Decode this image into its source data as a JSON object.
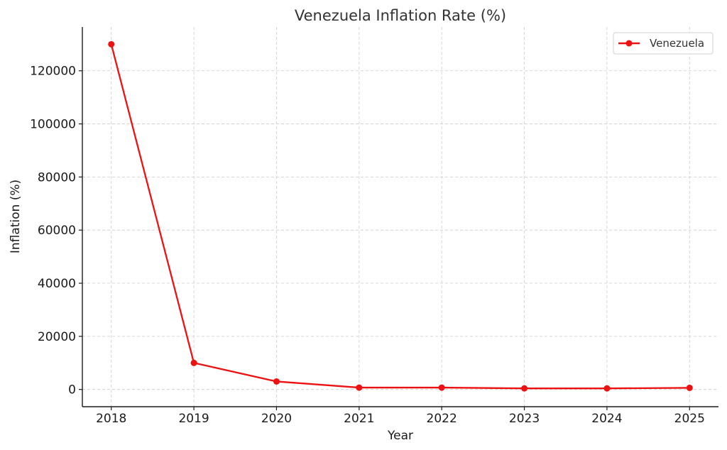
{
  "chart_data": {
    "type": "line",
    "title": "Venezuela Inflation Rate (%)",
    "xlabel": "Year",
    "ylabel": "Inflation (%)",
    "x": [
      2018,
      2019,
      2020,
      2021,
      2022,
      2023,
      2024,
      2025
    ],
    "x_tick_labels": [
      "2018",
      "2019",
      "2020",
      "2021",
      "2022",
      "2023",
      "2024",
      "2025"
    ],
    "xlim": [
      2017.65,
      2025.35
    ],
    "ylim": [
      -6500,
      136500
    ],
    "y_ticks": [
      0,
      20000,
      40000,
      60000,
      80000,
      100000,
      120000
    ],
    "y_tick_labels": [
      "0",
      "20000",
      "40000",
      "60000",
      "80000",
      "100000",
      "120000"
    ],
    "grid": true,
    "legend_position": "top-right",
    "series": [
      {
        "name": "Venezuela",
        "color": "#ee1111",
        "marker": "circle",
        "values": [
          130000,
          10000,
          3000,
          700,
          700,
          400,
          400,
          600
        ]
      }
    ]
  }
}
